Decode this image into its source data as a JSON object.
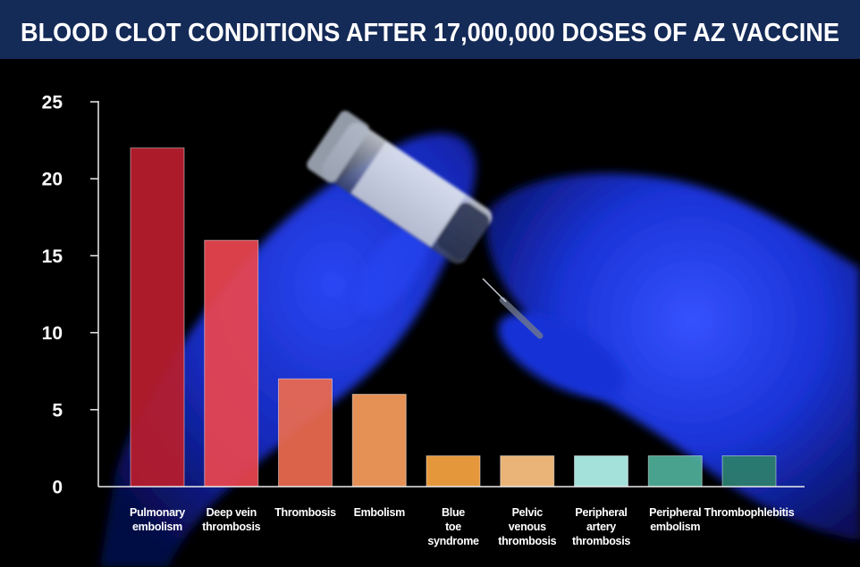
{
  "colors": {
    "banner": "#142a57",
    "background": "#000000",
    "axis": "#ececec",
    "text": "#ffffff"
  },
  "chart_data": {
    "type": "bar",
    "title": "BLOOD CLOT CONDITIONS AFTER 17,000,000 DOSES OF AZ VACCINE",
    "xlabel": "",
    "ylabel": "",
    "ylim": [
      0,
      25
    ],
    "yticks": [
      0,
      5,
      10,
      15,
      20,
      25
    ],
    "grid": false,
    "categories": [
      "Pulmonary\nembolism",
      "Deep vein\nthrombosis",
      "Thrombosis",
      "Embolism",
      "Blue\ntoe\nsyndrome",
      "Pelvic\nvenous\nthrombosis",
      "Peripheral\nartery\nthrombosis",
      "Peripheral\nembolism",
      "Thrombophlebitis"
    ],
    "values": [
      22,
      16,
      7,
      6,
      2,
      2,
      2,
      2,
      2
    ],
    "bar_colors": [
      "#b81d2d",
      "#e9454f",
      "#ec6b4f",
      "#f69c5d",
      "#f6a440",
      "#fcc181",
      "#b1f2ec",
      "#4fae98",
      "#2c7f6b"
    ]
  }
}
